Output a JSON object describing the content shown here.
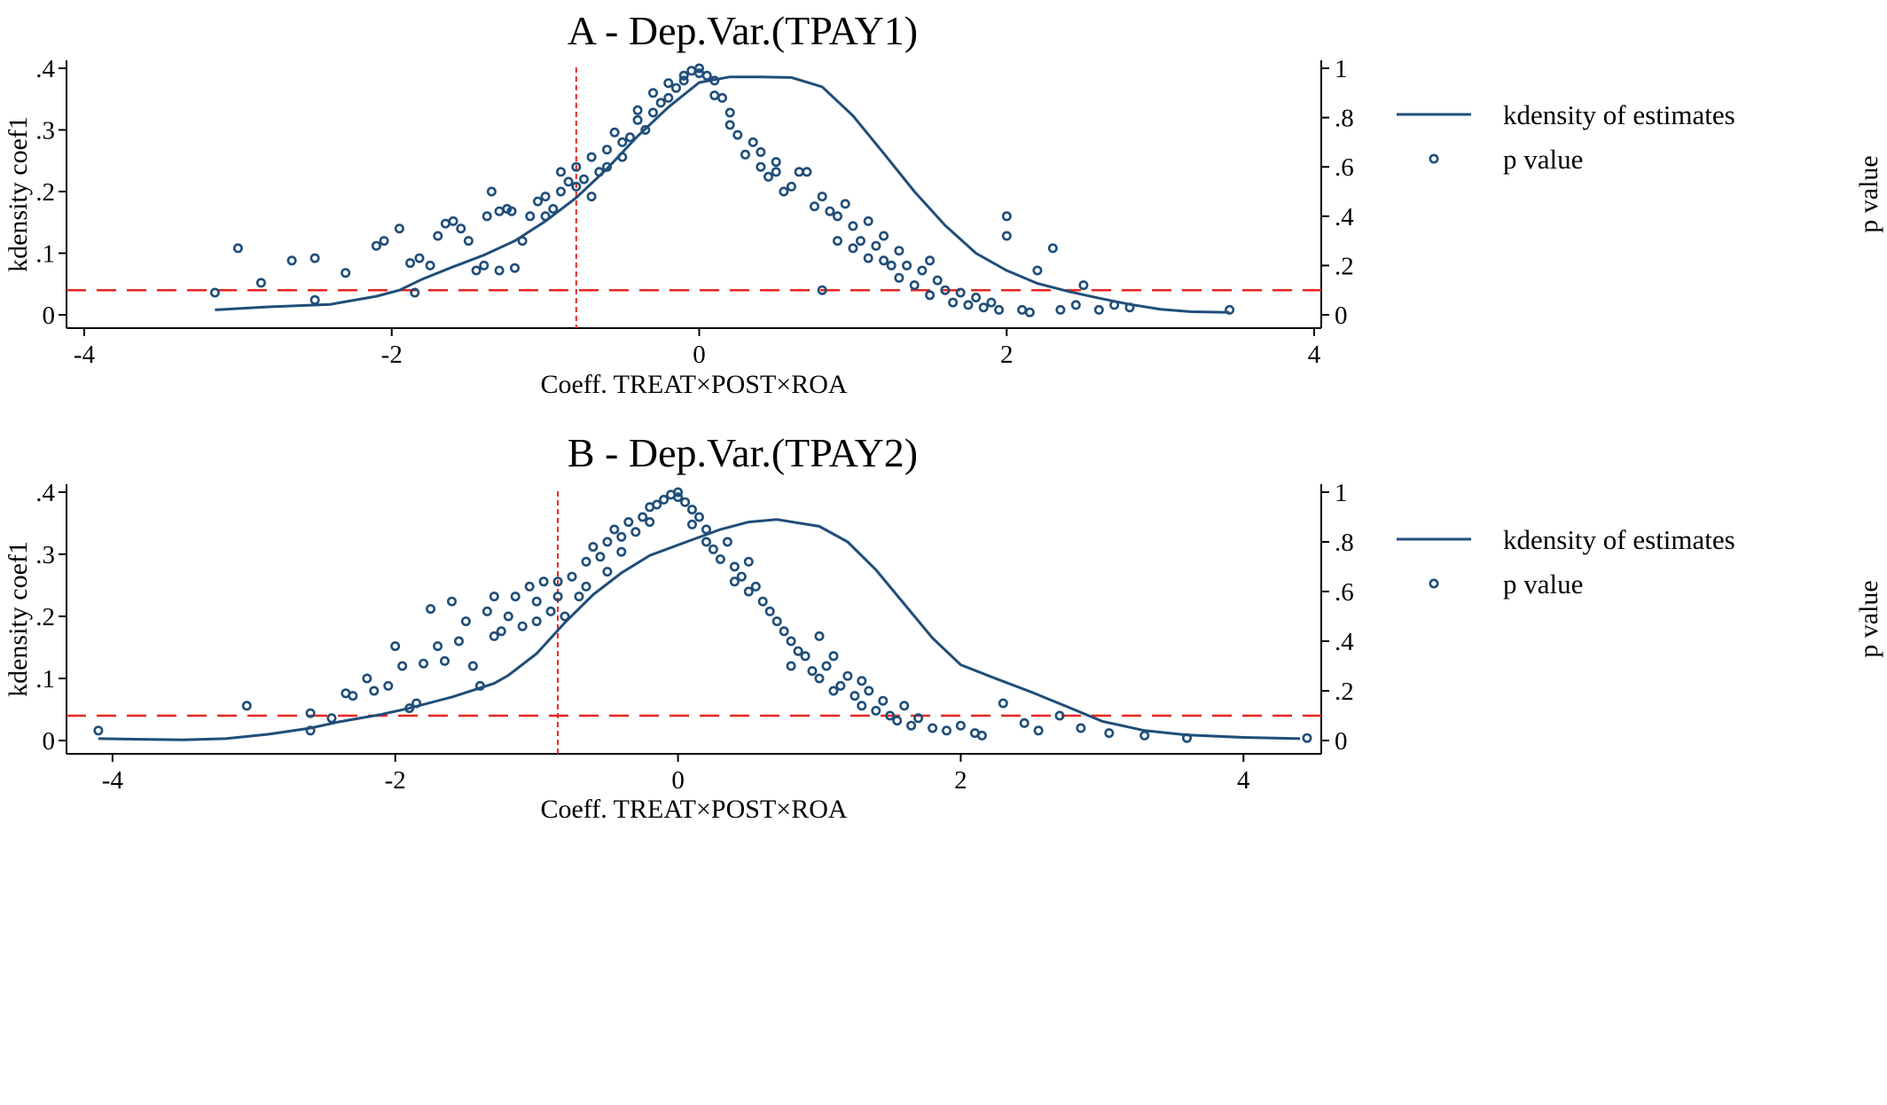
{
  "colors": {
    "series": "#1f4e79",
    "reference": "#e8261f",
    "axis": "#000000",
    "background": "#ffffff"
  },
  "chart_data": [
    {
      "type": "scatter",
      "title": "A - Dep.Var.(TPAY1)",
      "xlabel": "Coeff. TREAT×POST×ROA",
      "ylabel": "kdensity coef1",
      "y2label": "p value",
      "xlim": [
        -4,
        4
      ],
      "ylim": [
        0,
        0.4
      ],
      "y2lim": [
        0,
        1
      ],
      "xticks": [
        -4,
        -2,
        0,
        2,
        4
      ],
      "xtick_labels": [
        "-4",
        "-2",
        "0",
        "2",
        "4"
      ],
      "yticks": [
        0,
        0.1,
        0.2,
        0.3,
        0.4
      ],
      "ytick_labels": [
        "0",
        ".1",
        ".2",
        ".3",
        ".4"
      ],
      "y2ticks": [
        0,
        0.2,
        0.4,
        0.6,
        0.8,
        1
      ],
      "y2tick_labels": [
        "0",
        ".2",
        ".4",
        ".6",
        ".8",
        "1"
      ],
      "grid": false,
      "legend": {
        "position": "top-right",
        "entries": [
          "kdensity of estimates",
          "p value"
        ]
      },
      "reference_lines": {
        "x": -0.8,
        "p": 0.1
      },
      "kdensity": {
        "name": "kdensity of estimates",
        "x": [
          -3.15,
          -2.8,
          -2.4,
          -2.1,
          -1.95,
          -1.8,
          -1.6,
          -1.4,
          -1.2,
          -1.0,
          -0.8,
          -0.6,
          -0.4,
          -0.2,
          0.0,
          0.2,
          0.4,
          0.6,
          0.8,
          1.0,
          1.2,
          1.4,
          1.6,
          1.8,
          2.0,
          2.2,
          2.4,
          2.6,
          2.8,
          3.0,
          3.2,
          3.45
        ],
        "y": [
          0.008,
          0.013,
          0.017,
          0.03,
          0.04,
          0.058,
          0.078,
          0.097,
          0.12,
          0.152,
          0.19,
          0.237,
          0.29,
          0.337,
          0.377,
          0.386,
          0.386,
          0.385,
          0.37,
          0.323,
          0.262,
          0.2,
          0.145,
          0.1,
          0.072,
          0.051,
          0.038,
          0.027,
          0.017,
          0.009,
          0.005,
          0.004
        ]
      },
      "pvalues": {
        "name": "p value",
        "x": [
          -3.15,
          -3.0,
          -2.85,
          -2.65,
          -2.5,
          -2.5,
          -2.3,
          -2.1,
          -2.05,
          -1.95,
          -1.88,
          -1.85,
          -1.82,
          -1.75,
          -1.7,
          -1.65,
          -1.6,
          -1.55,
          -1.5,
          -1.45,
          -1.4,
          -1.38,
          -1.35,
          -1.3,
          -1.3,
          -1.25,
          -1.22,
          -1.2,
          -1.15,
          -1.1,
          -1.05,
          -1.0,
          -1.0,
          -0.95,
          -0.9,
          -0.9,
          -0.85,
          -0.8,
          -0.8,
          -0.75,
          -0.7,
          -0.7,
          -0.65,
          -0.6,
          -0.6,
          -0.55,
          -0.5,
          -0.5,
          -0.45,
          -0.4,
          -0.4,
          -0.35,
          -0.3,
          -0.3,
          -0.25,
          -0.2,
          -0.2,
          -0.15,
          -0.1,
          -0.1,
          -0.05,
          0.0,
          0.0,
          0.05,
          0.1,
          0.1,
          0.15,
          0.2,
          0.2,
          0.25,
          0.3,
          0.35,
          0.4,
          0.4,
          0.45,
          0.5,
          0.5,
          0.55,
          0.6,
          0.65,
          0.7,
          0.75,
          0.8,
          0.8,
          0.85,
          0.9,
          0.9,
          0.95,
          1.0,
          1.0,
          1.05,
          1.1,
          1.1,
          1.15,
          1.2,
          1.2,
          1.25,
          1.3,
          1.3,
          1.35,
          1.4,
          1.45,
          1.5,
          1.5,
          1.55,
          1.6,
          1.65,
          1.7,
          1.75,
          1.8,
          1.85,
          1.9,
          1.95,
          2.0,
          2.0,
          2.1,
          2.15,
          2.2,
          2.3,
          2.35,
          2.45,
          2.5,
          2.6,
          2.7,
          2.8,
          3.45
        ],
        "y": [
          0.09,
          0.27,
          0.13,
          0.22,
          0.23,
          0.06,
          0.17,
          0.28,
          0.3,
          0.35,
          0.21,
          0.09,
          0.23,
          0.2,
          0.32,
          0.37,
          0.38,
          0.35,
          0.3,
          0.18,
          0.2,
          0.4,
          0.5,
          0.42,
          0.18,
          0.43,
          0.42,
          0.19,
          0.3,
          0.4,
          0.46,
          0.48,
          0.4,
          0.43,
          0.5,
          0.58,
          0.54,
          0.52,
          0.6,
          0.55,
          0.48,
          0.64,
          0.58,
          0.67,
          0.6,
          0.74,
          0.7,
          0.64,
          0.72,
          0.79,
          0.83,
          0.75,
          0.82,
          0.9,
          0.86,
          0.88,
          0.94,
          0.92,
          0.95,
          0.97,
          0.99,
          1.0,
          0.98,
          0.97,
          0.95,
          0.89,
          0.88,
          0.82,
          0.77,
          0.73,
          0.65,
          0.7,
          0.6,
          0.66,
          0.56,
          0.62,
          0.58,
          0.5,
          0.52,
          0.58,
          0.58,
          0.44,
          0.48,
          0.1,
          0.42,
          0.4,
          0.3,
          0.45,
          0.36,
          0.27,
          0.3,
          0.38,
          0.23,
          0.28,
          0.32,
          0.22,
          0.2,
          0.26,
          0.15,
          0.2,
          0.12,
          0.18,
          0.22,
          0.08,
          0.14,
          0.1,
          0.05,
          0.09,
          0.04,
          0.07,
          0.03,
          0.05,
          0.02,
          0.4,
          0.32,
          0.02,
          0.01,
          0.18,
          0.27,
          0.02,
          0.04,
          0.12,
          0.02,
          0.04,
          0.03,
          0.02
        ]
      }
    },
    {
      "type": "scatter",
      "title": "B - Dep.Var.(TPAY2)",
      "xlabel": "Coeff. TREAT×POST×ROA",
      "ylabel": "kdensity coef1",
      "y2label": "p value",
      "xlim": [
        -4.2,
        4.5
      ],
      "ylim": [
        0,
        0.4
      ],
      "y2lim": [
        0,
        1
      ],
      "xticks": [
        -4,
        -2,
        0,
        2,
        4
      ],
      "xtick_labels": [
        "-4",
        "-2",
        "0",
        "2",
        "4"
      ],
      "yticks": [
        0,
        0.1,
        0.2,
        0.3,
        0.4
      ],
      "ytick_labels": [
        "0",
        ".1",
        ".2",
        ".3",
        ".4"
      ],
      "y2ticks": [
        0,
        0.2,
        0.4,
        0.6,
        0.8,
        1
      ],
      "y2tick_labels": [
        "0",
        ".2",
        ".4",
        ".6",
        ".8",
        "1"
      ],
      "grid": false,
      "legend": {
        "position": "top-right",
        "entries": [
          "kdensity of estimates",
          "p value"
        ]
      },
      "reference_lines": {
        "x": -0.85,
        "p": 0.1
      },
      "kdensity": {
        "name": "kdensity of estimates",
        "x": [
          -4.1,
          -3.8,
          -3.5,
          -3.2,
          -2.9,
          -2.6,
          -2.4,
          -2.1,
          -1.9,
          -1.6,
          -1.3,
          -1.2,
          -1.0,
          -0.8,
          -0.6,
          -0.4,
          -0.2,
          0.0,
          0.3,
          0.5,
          0.7,
          1.0,
          1.2,
          1.4,
          1.6,
          1.8,
          2.0,
          2.2,
          2.5,
          2.8,
          3.0,
          3.3,
          3.6,
          4.0,
          4.4
        ],
        "y": [
          0.003,
          0.002,
          0.001,
          0.003,
          0.01,
          0.02,
          0.03,
          0.042,
          0.052,
          0.07,
          0.092,
          0.105,
          0.14,
          0.19,
          0.235,
          0.27,
          0.298,
          0.315,
          0.34,
          0.352,
          0.356,
          0.345,
          0.32,
          0.275,
          0.22,
          0.165,
          0.122,
          0.104,
          0.078,
          0.05,
          0.031,
          0.016,
          0.009,
          0.005,
          0.003
        ]
      },
      "pvalues": {
        "name": "p value",
        "x": [
          -4.1,
          -3.05,
          -2.6,
          -2.6,
          -2.45,
          -2.35,
          -2.3,
          -2.2,
          -2.15,
          -2.05,
          -2.0,
          -1.95,
          -1.9,
          -1.85,
          -1.8,
          -1.75,
          -1.7,
          -1.65,
          -1.6,
          -1.55,
          -1.5,
          -1.45,
          -1.4,
          -1.35,
          -1.3,
          -1.3,
          -1.25,
          -1.2,
          -1.15,
          -1.1,
          -1.05,
          -1.0,
          -1.0,
          -0.95,
          -0.9,
          -0.85,
          -0.85,
          -0.8,
          -0.75,
          -0.7,
          -0.65,
          -0.65,
          -0.6,
          -0.55,
          -0.5,
          -0.5,
          -0.45,
          -0.4,
          -0.4,
          -0.35,
          -0.3,
          -0.25,
          -0.2,
          -0.2,
          -0.15,
          -0.1,
          -0.05,
          0.0,
          0.0,
          0.05,
          0.1,
          0.1,
          0.15,
          0.2,
          0.2,
          0.25,
          0.3,
          0.35,
          0.4,
          0.4,
          0.45,
          0.5,
          0.5,
          0.55,
          0.6,
          0.65,
          0.7,
          0.75,
          0.8,
          0.8,
          0.85,
          0.9,
          0.95,
          1.0,
          1.0,
          1.05,
          1.1,
          1.1,
          1.15,
          1.2,
          1.25,
          1.3,
          1.3,
          1.35,
          1.4,
          1.45,
          1.5,
          1.55,
          1.6,
          1.65,
          1.7,
          1.8,
          1.9,
          2.0,
          2.1,
          2.15,
          2.3,
          2.45,
          2.55,
          2.7,
          2.85,
          3.05,
          3.3,
          3.6,
          4.45
        ],
        "y": [
          0.04,
          0.14,
          0.11,
          0.04,
          0.09,
          0.19,
          0.18,
          0.25,
          0.2,
          0.22,
          0.38,
          0.3,
          0.13,
          0.15,
          0.31,
          0.53,
          0.38,
          0.32,
          0.56,
          0.4,
          0.48,
          0.3,
          0.22,
          0.52,
          0.58,
          0.42,
          0.44,
          0.5,
          0.58,
          0.46,
          0.62,
          0.48,
          0.56,
          0.64,
          0.52,
          0.64,
          0.58,
          0.5,
          0.66,
          0.58,
          0.72,
          0.62,
          0.78,
          0.74,
          0.8,
          0.68,
          0.85,
          0.82,
          0.76,
          0.88,
          0.84,
          0.9,
          0.94,
          0.88,
          0.95,
          0.97,
          0.99,
          1.0,
          0.98,
          0.96,
          0.93,
          0.87,
          0.9,
          0.85,
          0.8,
          0.77,
          0.73,
          0.8,
          0.7,
          0.64,
          0.66,
          0.72,
          0.6,
          0.62,
          0.56,
          0.52,
          0.48,
          0.44,
          0.4,
          0.3,
          0.36,
          0.34,
          0.28,
          0.42,
          0.25,
          0.3,
          0.2,
          0.34,
          0.22,
          0.26,
          0.18,
          0.24,
          0.14,
          0.2,
          0.12,
          0.16,
          0.1,
          0.08,
          0.14,
          0.06,
          0.09,
          0.05,
          0.04,
          0.06,
          0.03,
          0.02,
          0.15,
          0.07,
          0.04,
          0.1,
          0.05,
          0.03,
          0.02,
          0.01,
          0.01
        ]
      }
    }
  ]
}
